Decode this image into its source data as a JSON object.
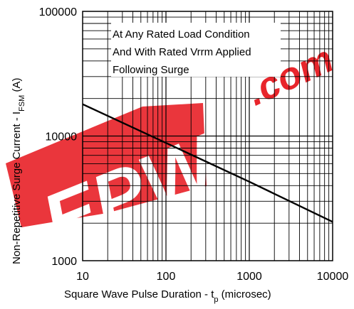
{
  "chart_data": {
    "type": "line",
    "x_scale": "log",
    "y_scale": "log",
    "xlim": [
      10,
      10000
    ],
    "ylim": [
      1000,
      100000
    ],
    "x_ticks": [
      "10",
      "100",
      "1000",
      "10000"
    ],
    "y_ticks": [
      "100000",
      "10000",
      "1000"
    ],
    "xlabel": {
      "main": "Square Wave Pulse Duration - t",
      "sub": "p",
      "tail": " (microsec)"
    },
    "ylabel": {
      "main": "Non-Repetitive Surge Current - I",
      "sub": "FSM",
      "tail": " (A)"
    },
    "annotation": [
      "At Any Rated Load Condition",
      "And With Rated Vrrm Applied",
      "Following Surge"
    ],
    "grid": true,
    "series": [
      {
        "x": [
          10,
          100,
          1000,
          10000
        ],
        "y": [
          18000,
          8800,
          4300,
          2050
        ]
      }
    ],
    "colors": {
      "line": "#000000",
      "grid": "#000000",
      "watermark": "#e8252b"
    }
  },
  "watermark": {
    "text": "EPW",
    "suffix": ".com"
  }
}
